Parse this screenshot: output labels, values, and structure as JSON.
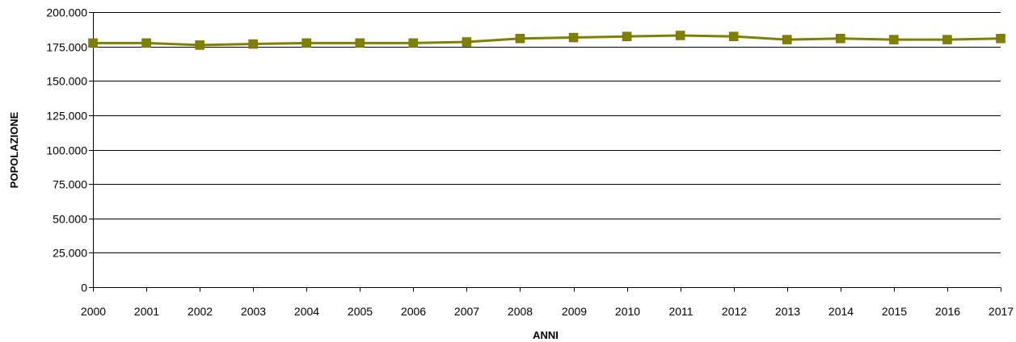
{
  "chart_data": {
    "type": "line",
    "title": "",
    "xlabel": "ANNI",
    "ylabel": "POPOLAZIONE",
    "categories": [
      "2000",
      "2001",
      "2002",
      "2003",
      "2004",
      "2005",
      "2006",
      "2007",
      "2008",
      "2009",
      "2010",
      "2011",
      "2012",
      "2013",
      "2014",
      "2015",
      "2016",
      "2017"
    ],
    "series": [
      {
        "values": [
          177500,
          177500,
          176000,
          176800,
          177500,
          177500,
          177500,
          178300,
          180800,
          181500,
          182300,
          183000,
          182300,
          180000,
          180800,
          180000,
          180000,
          180800
        ],
        "color": "#808000",
        "marker": "square"
      }
    ],
    "ylim": [
      0,
      200000
    ],
    "yticks": [
      0,
      25000,
      50000,
      75000,
      100000,
      125000,
      150000,
      175000,
      200000
    ],
    "ytick_labels": [
      "0",
      "25.000",
      "50.000",
      "75.000",
      "100.000",
      "125.000",
      "150.000",
      "175.000",
      "200.000"
    ],
    "grid": "horizontal",
    "legend": "none"
  }
}
